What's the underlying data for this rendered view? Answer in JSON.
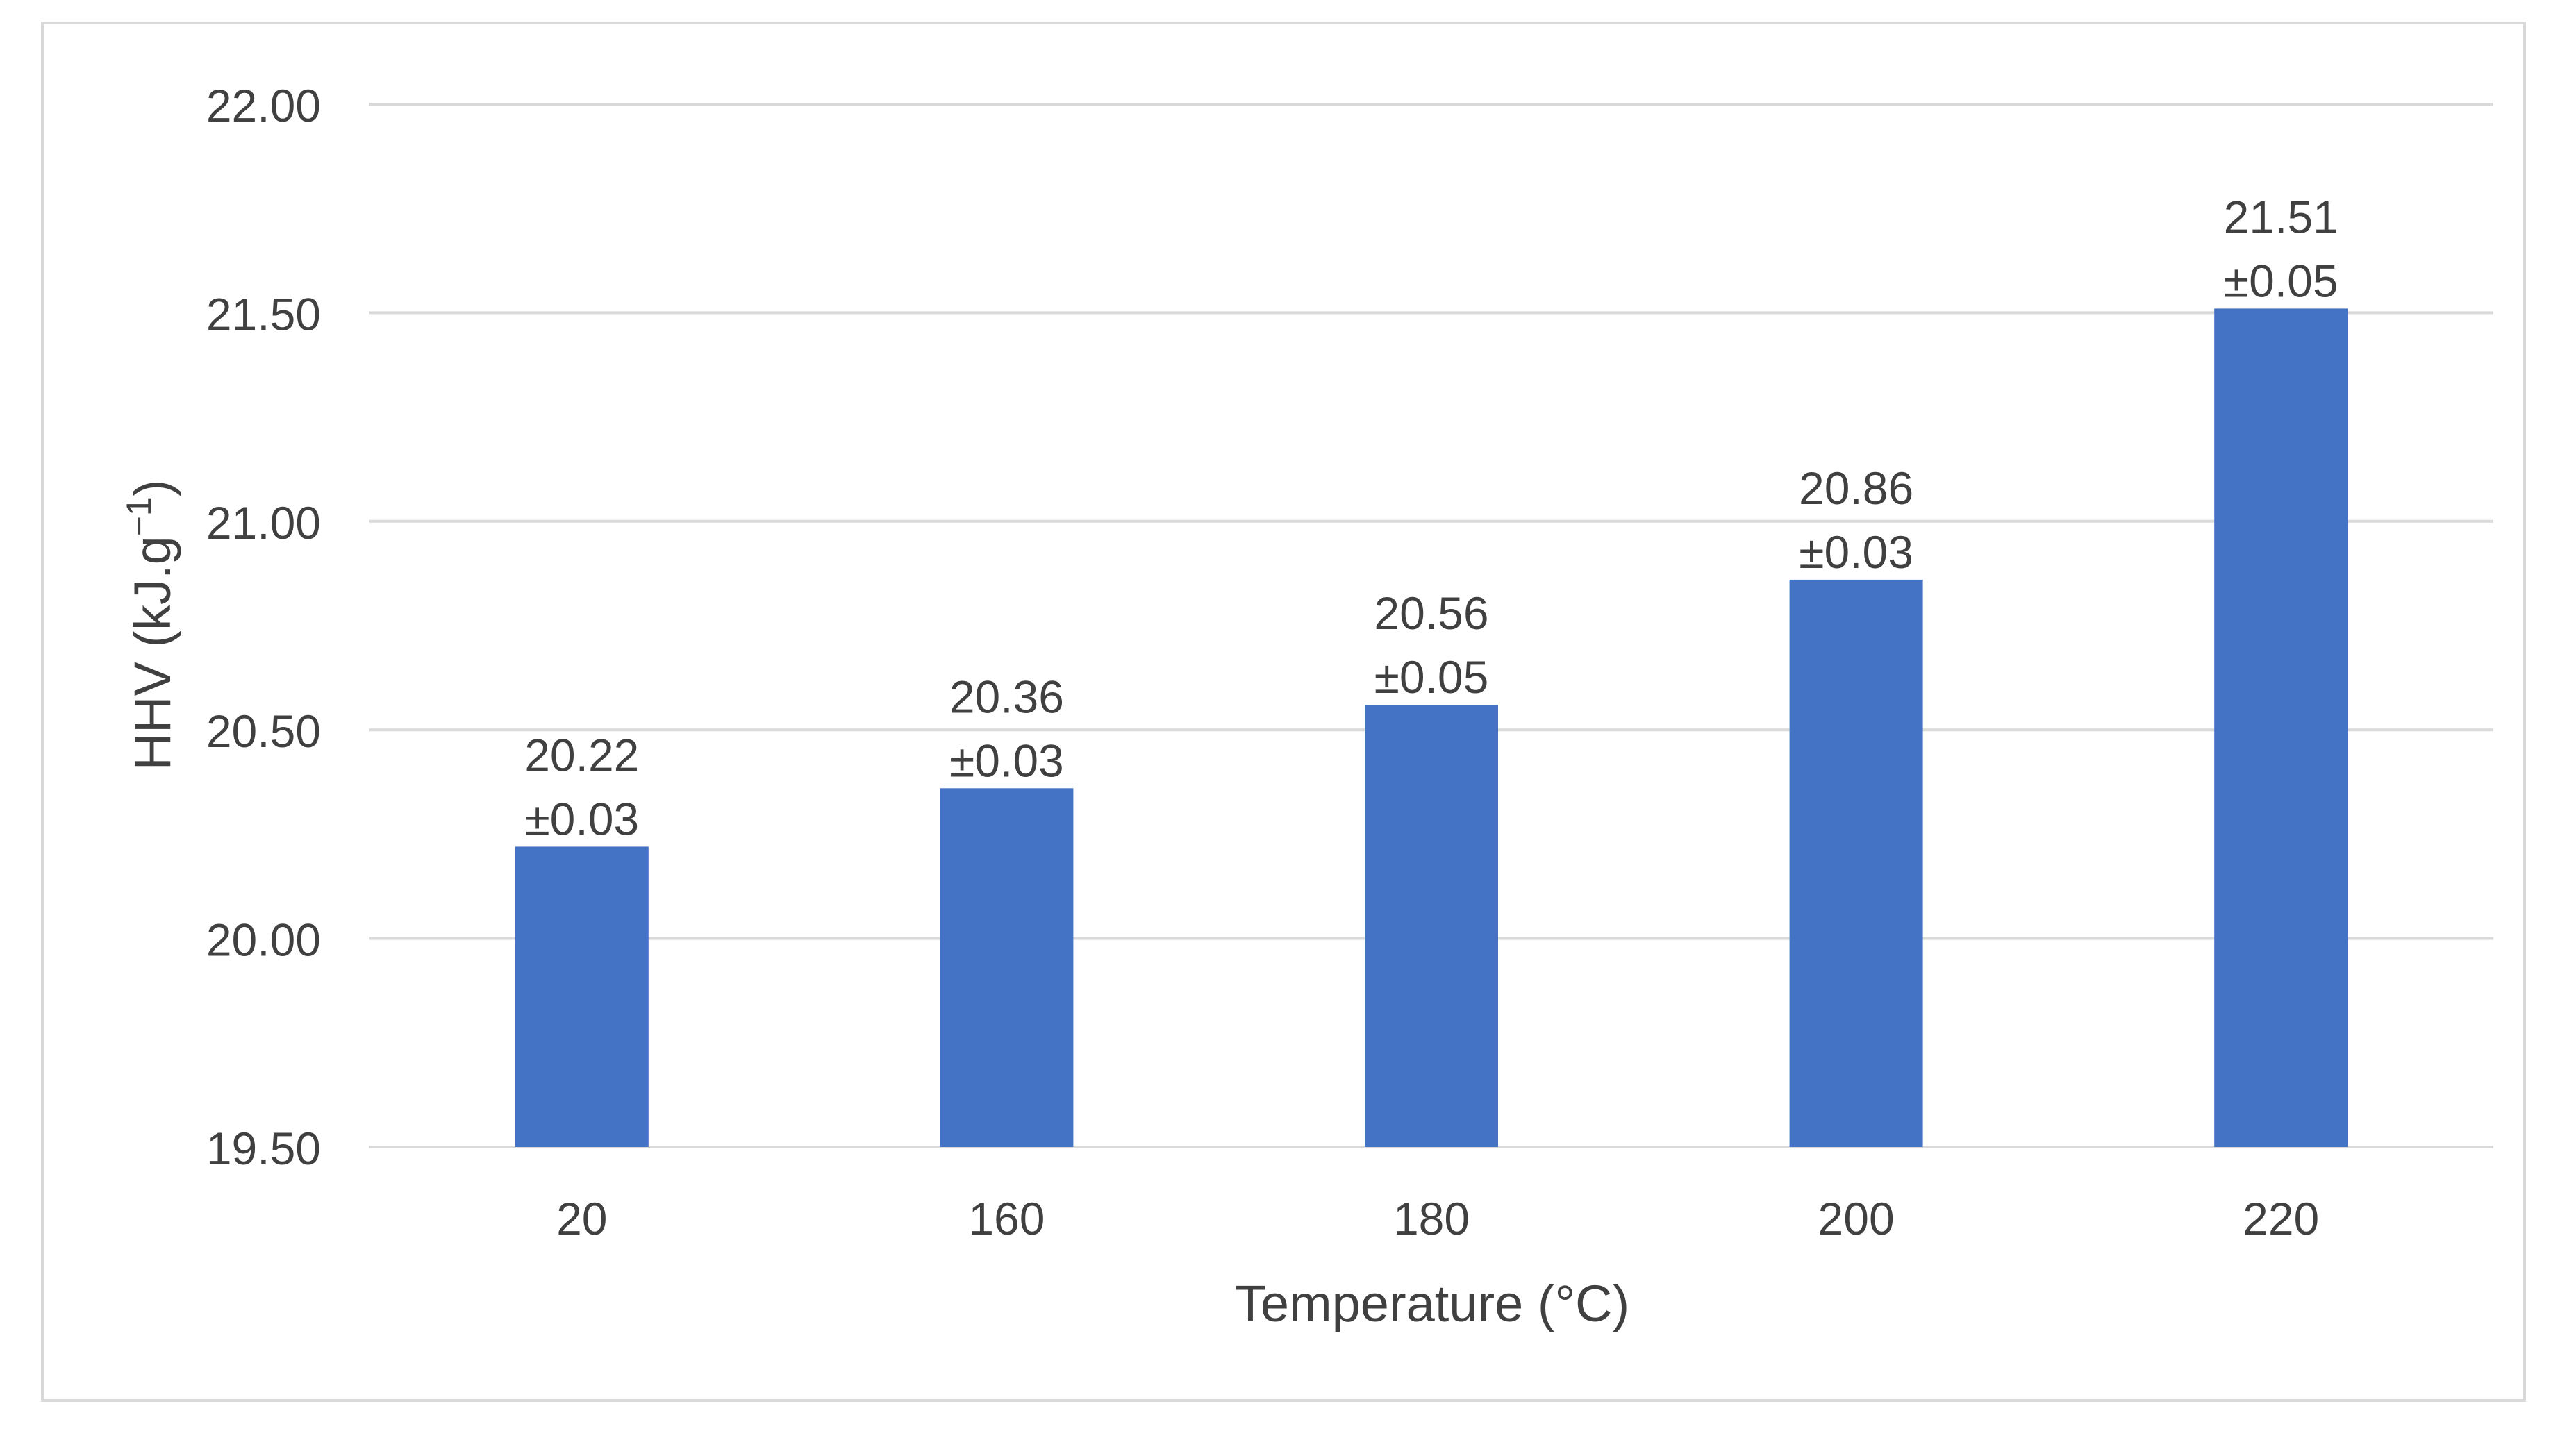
{
  "chart_data": {
    "type": "bar",
    "categories": [
      "20",
      "160",
      "180",
      "200",
      "220"
    ],
    "values": [
      20.22,
      20.36,
      20.56,
      20.86,
      21.51
    ],
    "errors": [
      "±0.03",
      "±0.03",
      "±0.05",
      "±0.03",
      "±0.05"
    ],
    "value_labels": [
      "20.22",
      "20.36",
      "20.56",
      "20.86",
      "21.51"
    ],
    "title": "",
    "xlabel": "Temperature (°C)",
    "ylabel_base": "HHV (kJ.g",
    "ylabel_sup": "−1",
    "ylabel_end": ")",
    "ylim": [
      19.5,
      22.0
    ],
    "yticks": [
      "19.50",
      "20.00",
      "20.50",
      "21.00",
      "21.50",
      "22.00"
    ],
    "ytick_values": [
      19.5,
      20.0,
      20.5,
      21.0,
      21.5,
      22.0
    ],
    "grid": true,
    "legend": "none",
    "colors": {
      "bar": "#4472c4",
      "grid": "#d9d9d9",
      "text": "#404040"
    }
  }
}
